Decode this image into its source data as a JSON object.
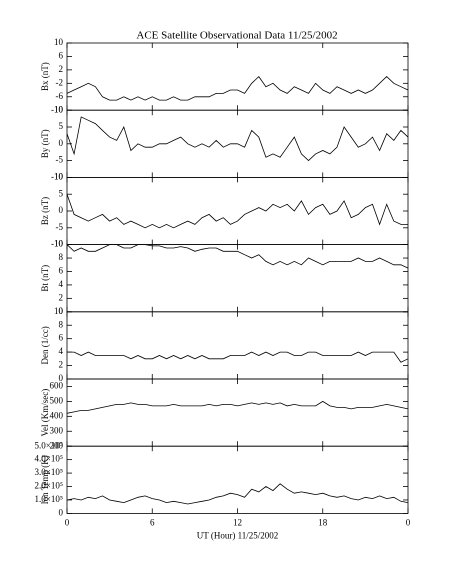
{
  "chart_data": [
    {
      "type": "line",
      "title": "ACE Satellite Observational Data   11/25/2002",
      "ylabel": "Bx (nT)",
      "color": "#000000",
      "xlim": [
        0,
        24
      ],
      "ylim": [
        -10,
        10
      ],
      "yticks": [
        -10,
        -6,
        -2,
        2,
        6,
        10
      ],
      "x": [
        0,
        0.5,
        1,
        1.5,
        2,
        2.5,
        3,
        3.5,
        4,
        4.5,
        5,
        5.5,
        6,
        6.5,
        7,
        7.5,
        8,
        8.5,
        9,
        9.5,
        10,
        10.5,
        11,
        11.5,
        12,
        12.5,
        13,
        13.5,
        14,
        14.5,
        15,
        15.5,
        16,
        16.5,
        17,
        17.5,
        18,
        18.5,
        19,
        19.5,
        20,
        20.5,
        21,
        21.5,
        22,
        22.5,
        23,
        23.5,
        24
      ],
      "values": [
        -5,
        -4,
        -3,
        -2,
        -3,
        -6,
        -7,
        -7,
        -6,
        -7,
        -6,
        -7,
        -6,
        -7,
        -7,
        -6,
        -7,
        -7,
        -6,
        -6,
        -6,
        -5,
        -5,
        -4,
        -4,
        -5,
        -2,
        0,
        -3,
        -2,
        -4,
        -5,
        -3,
        -4,
        -5,
        -2,
        -4,
        -5,
        -3,
        -4,
        -5,
        -4,
        -5,
        -4,
        -2,
        0,
        -2,
        -3,
        -4
      ]
    },
    {
      "type": "line",
      "ylabel": "By (nT)",
      "color": "#000000",
      "xlim": [
        0,
        24
      ],
      "ylim": [
        -10,
        10
      ],
      "yticks": [
        -10,
        -5,
        0,
        5,
        10
      ],
      "x": [
        0,
        0.5,
        1,
        1.5,
        2,
        2.5,
        3,
        3.5,
        4,
        4.5,
        5,
        5.5,
        6,
        6.5,
        7,
        7.5,
        8,
        8.5,
        9,
        9.5,
        10,
        10.5,
        11,
        11.5,
        12,
        12.5,
        13,
        13.5,
        14,
        14.5,
        15,
        15.5,
        16,
        16.5,
        17,
        17.5,
        18,
        18.5,
        19,
        19.5,
        20,
        20.5,
        21,
        21.5,
        22,
        22.5,
        23,
        23.5,
        24
      ],
      "values": [
        3,
        -3,
        8,
        7,
        6,
        4,
        2,
        1,
        5,
        -2,
        0,
        -1,
        -1,
        0,
        0,
        1,
        2,
        0,
        -1,
        0,
        -1,
        1,
        -1,
        0,
        0,
        -1,
        4,
        2,
        -4,
        -3,
        -4,
        -1,
        2,
        -3,
        -5,
        -3,
        -2,
        -3,
        -1,
        5,
        2,
        -1,
        0,
        2,
        -2,
        3,
        1,
        4,
        2
      ]
    },
    {
      "type": "line",
      "ylabel": "Bz (nT)",
      "color": "#000000",
      "xlim": [
        0,
        24
      ],
      "ylim": [
        -10,
        10
      ],
      "yticks": [
        -10,
        -5,
        0,
        5,
        10
      ],
      "x": [
        0,
        0.5,
        1,
        1.5,
        2,
        2.5,
        3,
        3.5,
        4,
        4.5,
        5,
        5.5,
        6,
        6.5,
        7,
        7.5,
        8,
        8.5,
        9,
        9.5,
        10,
        10.5,
        11,
        11.5,
        12,
        12.5,
        13,
        13.5,
        14,
        14.5,
        15,
        15.5,
        16,
        16.5,
        17,
        17.5,
        18,
        18.5,
        19,
        19.5,
        20,
        20.5,
        21,
        21.5,
        22,
        22.5,
        23,
        23.5,
        24
      ],
      "values": [
        5,
        -1,
        -2,
        -3,
        -2,
        -1,
        -3,
        -2,
        -4,
        -3,
        -4,
        -5,
        -4,
        -5,
        -4,
        -5,
        -4,
        -3,
        -4,
        -2,
        -1,
        -3,
        -2,
        -4,
        -3,
        -1,
        0,
        1,
        0,
        2,
        1,
        2,
        0,
        3,
        -1,
        1,
        2,
        -1,
        0,
        3,
        -2,
        -1,
        1,
        2,
        -4,
        2,
        -3,
        -4,
        -4
      ]
    },
    {
      "type": "line",
      "ylabel": "Bt (nT)",
      "color": "#000000",
      "xlim": [
        0,
        24
      ],
      "ylim": [
        0,
        10
      ],
      "yticks": [
        0,
        2,
        4,
        6,
        8,
        10
      ],
      "x": [
        0,
        0.5,
        1,
        1.5,
        2,
        2.5,
        3,
        3.5,
        4,
        4.5,
        5,
        5.5,
        6,
        6.5,
        7,
        7.5,
        8,
        8.5,
        9,
        9.5,
        10,
        10.5,
        11,
        11.5,
        12,
        12.5,
        13,
        13.5,
        14,
        14.5,
        15,
        15.5,
        16,
        16.5,
        17,
        17.5,
        18,
        18.5,
        19,
        19.5,
        20,
        20.5,
        21,
        21.5,
        22,
        22.5,
        23,
        23.5,
        24
      ],
      "values": [
        10,
        9,
        9.5,
        9,
        9,
        9.5,
        10,
        10,
        9.5,
        9.5,
        10,
        10,
        9.8,
        9.8,
        9.5,
        9.5,
        9.7,
        9.5,
        9,
        9.3,
        9.5,
        9.5,
        9,
        9,
        9,
        8.5,
        8,
        8.5,
        7.5,
        7,
        7.5,
        7,
        7.5,
        7,
        8,
        7.5,
        7,
        7.5,
        7.5,
        7.5,
        7.5,
        8,
        7.5,
        7.5,
        8,
        7.5,
        7,
        7,
        6.5
      ]
    },
    {
      "type": "line",
      "ylabel": "Den (1/cc)",
      "color": "#000000",
      "xlim": [
        0,
        24
      ],
      "ylim": [
        0,
        10
      ],
      "yticks": [
        0,
        2,
        4,
        6,
        8,
        10
      ],
      "x": [
        0,
        0.5,
        1,
        1.5,
        2,
        2.5,
        3,
        3.5,
        4,
        4.5,
        5,
        5.5,
        6,
        6.5,
        7,
        7.5,
        8,
        8.5,
        9,
        9.5,
        10,
        10.5,
        11,
        11.5,
        12,
        12.5,
        13,
        13.5,
        14,
        14.5,
        15,
        15.5,
        16,
        16.5,
        17,
        17.5,
        18,
        18.5,
        19,
        19.5,
        20,
        20.5,
        21,
        21.5,
        22,
        22.5,
        23,
        23.5,
        24
      ],
      "values": [
        4,
        4,
        3.5,
        4,
        3.5,
        3.5,
        3.5,
        3.5,
        3.5,
        3,
        3.5,
        3,
        3,
        3.5,
        3,
        3.5,
        3,
        3.5,
        3,
        3.5,
        3,
        3,
        3,
        3.5,
        3.5,
        3.5,
        4,
        3.5,
        4,
        3.5,
        4,
        4,
        3.5,
        3.5,
        4,
        4,
        3.5,
        3.5,
        3.5,
        3.5,
        3.5,
        4,
        3.5,
        4,
        4,
        4,
        4,
        2.5,
        3
      ]
    },
    {
      "type": "line",
      "ylabel": "Vel (Km/sec)",
      "color": "#000000",
      "xlim": [
        0,
        24
      ],
      "ylim": [
        200,
        650
      ],
      "yticks": [
        200,
        300,
        400,
        500,
        600
      ],
      "x": [
        0,
        0.5,
        1,
        1.5,
        2,
        2.5,
        3,
        3.5,
        4,
        4.5,
        5,
        5.5,
        6,
        6.5,
        7,
        7.5,
        8,
        8.5,
        9,
        9.5,
        10,
        10.5,
        11,
        11.5,
        12,
        12.5,
        13,
        13.5,
        14,
        14.5,
        15,
        15.5,
        16,
        16.5,
        17,
        17.5,
        18,
        18.5,
        19,
        19.5,
        20,
        20.5,
        21,
        21.5,
        22,
        22.5,
        23,
        23.5,
        24
      ],
      "values": [
        420,
        430,
        440,
        440,
        450,
        460,
        470,
        480,
        480,
        490,
        480,
        480,
        470,
        470,
        470,
        480,
        470,
        470,
        470,
        470,
        480,
        470,
        480,
        480,
        470,
        480,
        490,
        480,
        490,
        480,
        490,
        470,
        480,
        470,
        470,
        470,
        500,
        470,
        460,
        460,
        450,
        460,
        460,
        460,
        470,
        480,
        470,
        460,
        450
      ]
    },
    {
      "type": "line",
      "ylabel": "Ion Temp (K)",
      "xlabel": "UT (Hour)  11/25/2002",
      "color": "#000000",
      "xlim": [
        0,
        24
      ],
      "xticks": [
        0,
        6,
        12,
        18,
        {
          "value": 24,
          "label": "0"
        }
      ],
      "ylim": [
        0,
        500000
      ],
      "yticks": [
        0,
        {
          "value": 100000,
          "label": "1.0×10⁵"
        },
        {
          "value": 200000,
          "label": "2.0×10⁵"
        },
        {
          "value": 300000,
          "label": "3.0×10⁵"
        },
        {
          "value": 400000,
          "label": "4.0×10⁵"
        },
        {
          "value": 500000,
          "label": "5.0×10⁵"
        }
      ],
      "x": [
        0,
        0.5,
        1,
        1.5,
        2,
        2.5,
        3,
        3.5,
        4,
        4.5,
        5,
        5.5,
        6,
        6.5,
        7,
        7.5,
        8,
        8.5,
        9,
        9.5,
        10,
        10.5,
        11,
        11.5,
        12,
        12.5,
        13,
        13.5,
        14,
        14.5,
        15,
        15.5,
        16,
        16.5,
        17,
        17.5,
        18,
        18.5,
        19,
        19.5,
        20,
        20.5,
        21,
        21.5,
        22,
        22.5,
        23,
        23.5,
        24
      ],
      "values": [
        100000,
        110000,
        100000,
        120000,
        110000,
        130000,
        100000,
        90000,
        80000,
        100000,
        120000,
        130000,
        110000,
        100000,
        80000,
        90000,
        80000,
        70000,
        80000,
        90000,
        100000,
        120000,
        130000,
        150000,
        140000,
        120000,
        180000,
        160000,
        200000,
        170000,
        220000,
        180000,
        150000,
        160000,
        150000,
        140000,
        150000,
        130000,
        120000,
        130000,
        110000,
        100000,
        120000,
        110000,
        130000,
        110000,
        120000,
        90000,
        80000
      ]
    }
  ]
}
